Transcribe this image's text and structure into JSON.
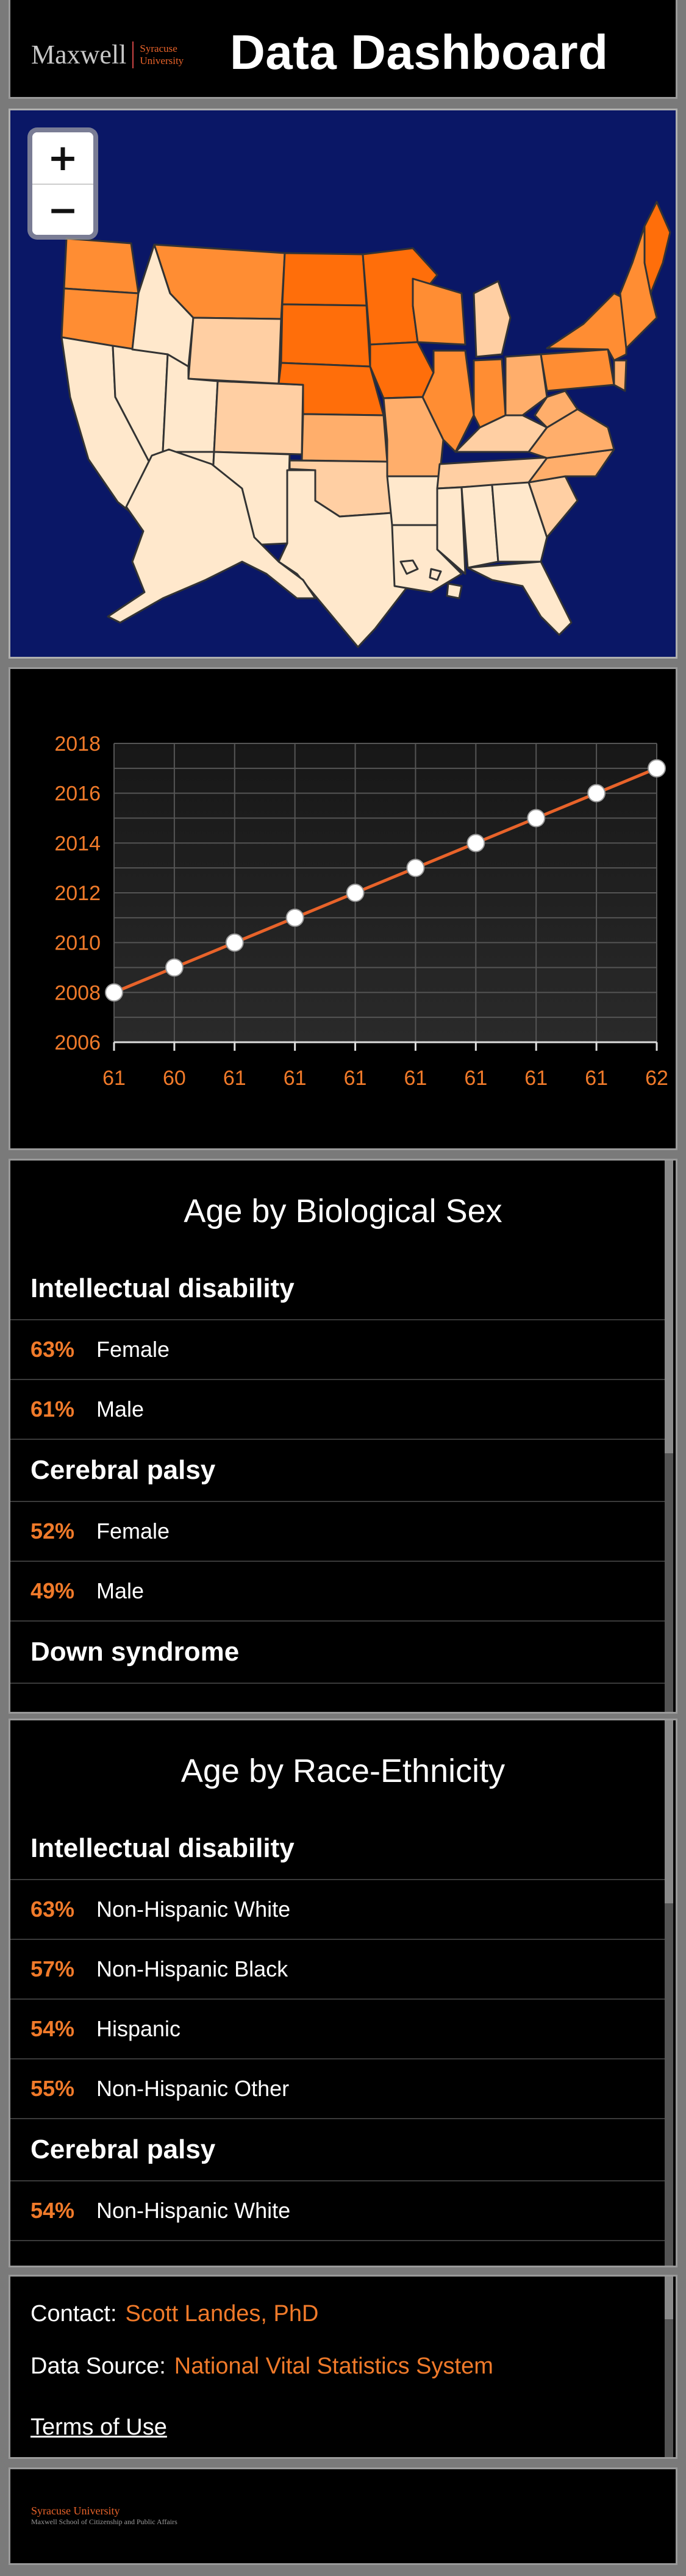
{
  "header": {
    "logo_main": "Maxwell",
    "logo_sub_1": "Syracuse",
    "logo_sub_2": "University",
    "title": "Data Dashboard"
  },
  "map": {
    "zoom_in_label": "+",
    "zoom_out_label": "−",
    "colors": {
      "ocean": "#0a1766",
      "darkest": "#ff6e0a",
      "dark": "#ff8d33",
      "mid": "#ffae6b",
      "light": "#ffcfa3",
      "lightest": "#ffe8cc"
    }
  },
  "chart_data": {
    "type": "line",
    "x": [
      "61",
      "60",
      "61",
      "61",
      "61",
      "61",
      "61",
      "61",
      "61",
      "62"
    ],
    "y": [
      2008,
      2009,
      2010,
      2011,
      2012,
      2013,
      2014,
      2015,
      2016,
      2017
    ],
    "yticks": [
      "2006",
      "2008",
      "2010",
      "2012",
      "2014",
      "2016",
      "2018"
    ],
    "ylim": [
      2006,
      2018
    ],
    "grid": true,
    "line_color": "#e8632a",
    "label_color": "#f07a2a"
  },
  "sex_panel": {
    "title": "Age by Biological Sex",
    "groups": [
      {
        "name": "Intellectual disability",
        "items": [
          {
            "pct": "63%",
            "label": "Female"
          },
          {
            "pct": "61%",
            "label": "Male"
          }
        ]
      },
      {
        "name": "Cerebral palsy",
        "items": [
          {
            "pct": "52%",
            "label": "Female"
          },
          {
            "pct": "49%",
            "label": "Male"
          }
        ]
      },
      {
        "name": "Down syndrome",
        "items": []
      }
    ]
  },
  "race_panel": {
    "title": "Age by Race-Ethnicity",
    "groups": [
      {
        "name": "Intellectual disability",
        "items": [
          {
            "pct": "63%",
            "label": "Non-Hispanic White"
          },
          {
            "pct": "57%",
            "label": "Non-Hispanic Black"
          },
          {
            "pct": "54%",
            "label": "Hispanic"
          },
          {
            "pct": "55%",
            "label": "Non-Hispanic Other"
          }
        ]
      },
      {
        "name": "Cerebral palsy",
        "items": [
          {
            "pct": "54%",
            "label": "Non-Hispanic White"
          }
        ]
      }
    ]
  },
  "contact": {
    "contact_label": "Contact:",
    "contact_value": "Scott Landes, PhD",
    "source_label": "Data Source:",
    "source_value": "National Vital Statistics System",
    "terms_label": "Terms of Use"
  },
  "footer": {
    "line1": "Syracuse University",
    "line2": "Maxwell School of Citizenship and Public Affairs"
  }
}
